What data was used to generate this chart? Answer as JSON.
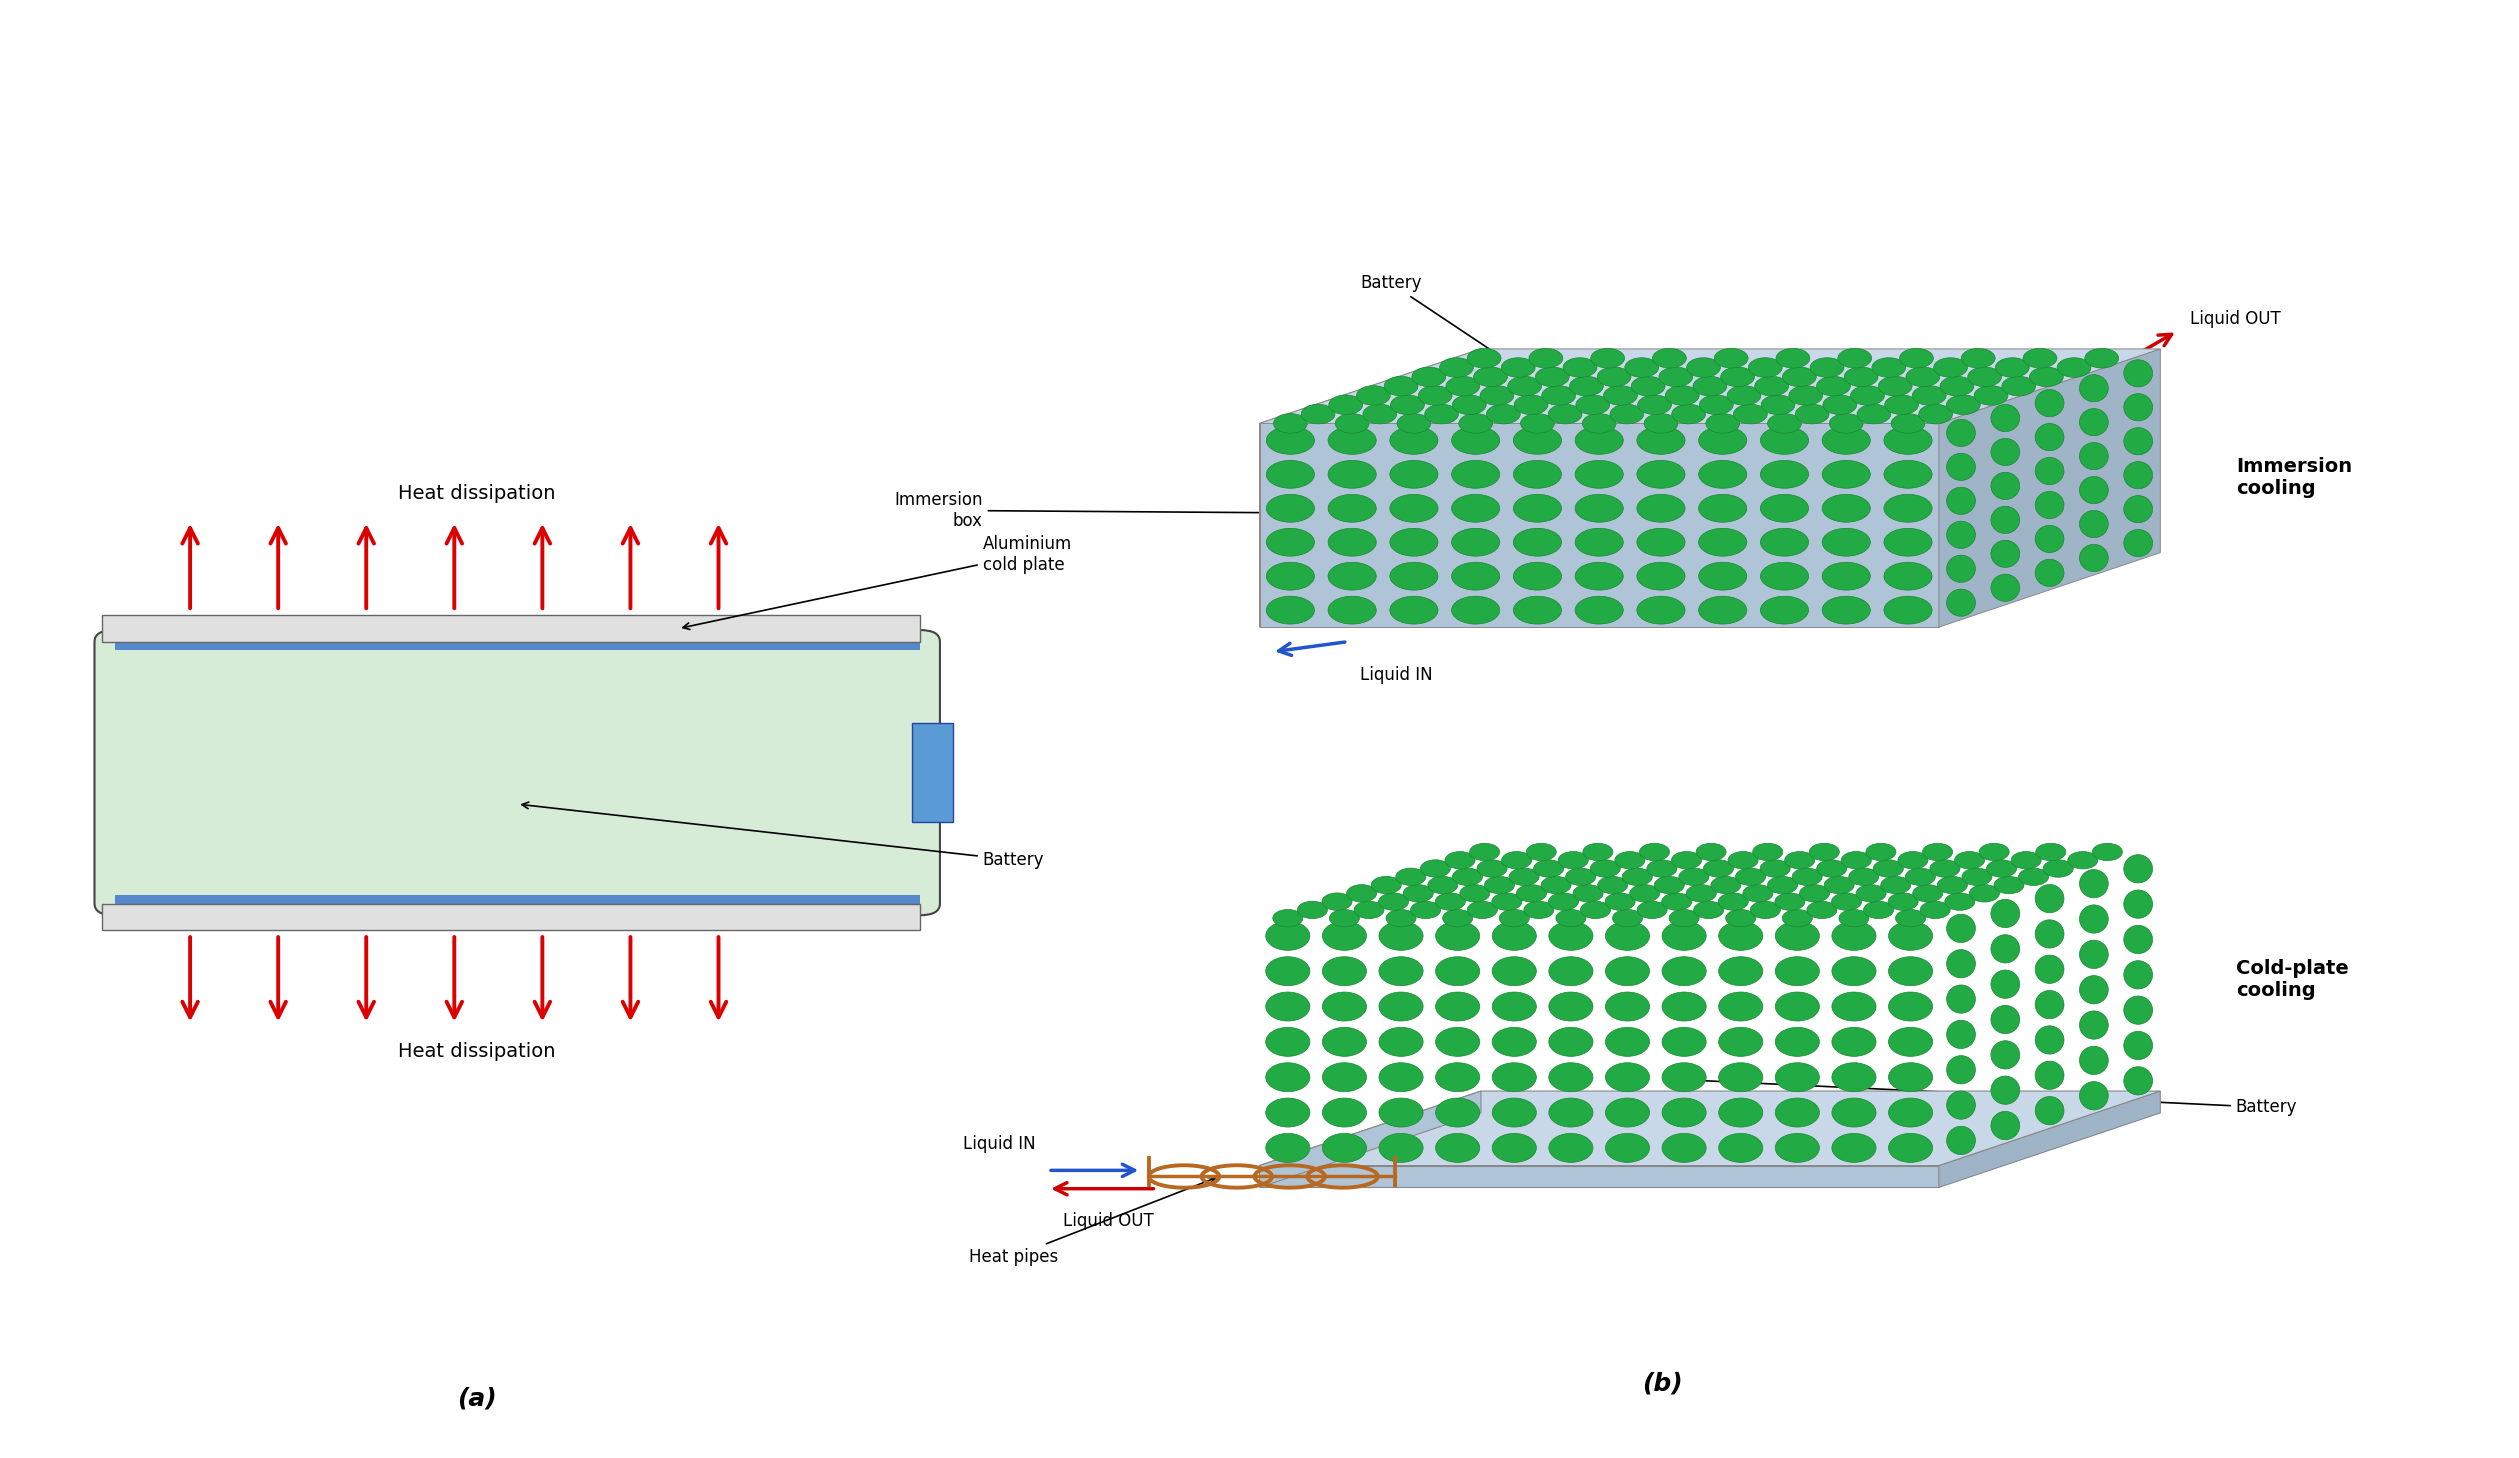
{
  "fig_width": 25.19,
  "fig_height": 14.58,
  "bg_color": "#ffffff",
  "panel_a": {
    "battery_color": "#d6ecd6",
    "battery_border": "#444444",
    "plate_color": "#e0e0e0",
    "plate_border": "#666666",
    "terminal_color": "#5b9bd5",
    "terminal_border": "#2244aa",
    "arrow_color": "#dd0000",
    "text_color": "#000000",
    "heat_dissipation_top": "Heat dissipation",
    "heat_dissipation_bottom": "Heat dissipation",
    "label_aluminium": "Aluminium\ncold plate",
    "label_battery": "Battery",
    "panel_label": "(a)"
  },
  "panel_b_top": {
    "battery_color": "#22aa44",
    "battery_dark": "#1a8833",
    "box_color_top": "#c8d8e8",
    "box_color_front": "#b0c4d8",
    "box_color_right": "#a0b4c8",
    "box_color_left": "#b8c8d8",
    "label_battery": "Battery",
    "label_box": "Immersion\nbox",
    "label_liquid_out": "Liquid OUT",
    "label_liquid_in": "Liquid IN",
    "arrow_out_color": "#cc0000",
    "arrow_in_color": "#2255cc",
    "title": "Immersion\ncooling"
  },
  "panel_b_bottom": {
    "battery_color": "#22aa44",
    "battery_dark": "#1a8833",
    "plate_color_top": "#c8d8e8",
    "plate_color_front": "#b0c4d8",
    "plate_color_right": "#a0b4c8",
    "pipe_color": "#b86820",
    "pipe_dark": "#8a4a10",
    "label_battery": "Battery",
    "label_pipes": "Heat pipes",
    "label_liquid_in": "Liquid IN",
    "label_liquid_out": "Liquid OUT",
    "arrow_out_color": "#cc0000",
    "arrow_in_color": "#2255cc",
    "title": "Cold-plate\ncooling"
  },
  "panel_label_b": "(b)"
}
